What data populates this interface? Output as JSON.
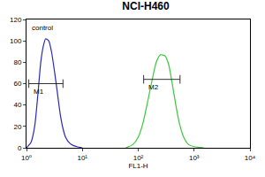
{
  "chart_data": {
    "type": "line",
    "title": "NCI-H460",
    "x_label": "FL1-H",
    "log": "x",
    "grid": false,
    "xlim": [
      1,
      10000
    ],
    "xticks": [
      {
        "value": 1,
        "label": "10⁰"
      },
      {
        "value": 10,
        "label": "10¹"
      },
      {
        "value": 100,
        "label": "10²"
      },
      {
        "value": 1000,
        "label": "10³"
      },
      {
        "value": 10000,
        "label": "10⁴"
      }
    ],
    "ylim": [
      0,
      120
    ],
    "yticks": [
      0,
      20,
      40,
      60,
      80,
      100,
      120
    ],
    "series": [
      {
        "color": "#2a2ab8",
        "x": [
          1,
          1.2,
          1.4,
          1.6,
          1.8,
          2,
          2.2,
          2.5,
          2.8,
          3.2,
          3.6,
          4,
          4.5,
          5,
          6,
          7,
          8,
          10
        ],
        "values": [
          0,
          5,
          20,
          50,
          80,
          95,
          102,
          100,
          90,
          70,
          50,
          32,
          18,
          10,
          4,
          2,
          1,
          0
        ]
      },
      {
        "color": "#3cc83c",
        "x": [
          60,
          80,
          100,
          120,
          150,
          180,
          210,
          250,
          300,
          350,
          400,
          470,
          550,
          650,
          800,
          1000,
          1500
        ],
        "values": [
          0,
          3,
          10,
          22,
          45,
          65,
          80,
          87,
          86,
          78,
          62,
          40,
          22,
          10,
          3,
          1,
          0
        ]
      }
    ],
    "gates": [
      {
        "label": "M1",
        "x": [
          1.1,
          4.5
        ],
        "y": 60
      },
      {
        "label": "M2",
        "x": [
          125,
          560
        ],
        "y": 64
      }
    ],
    "annotations": [
      {
        "text": "control",
        "x": 1.15,
        "y": 112
      }
    ]
  }
}
